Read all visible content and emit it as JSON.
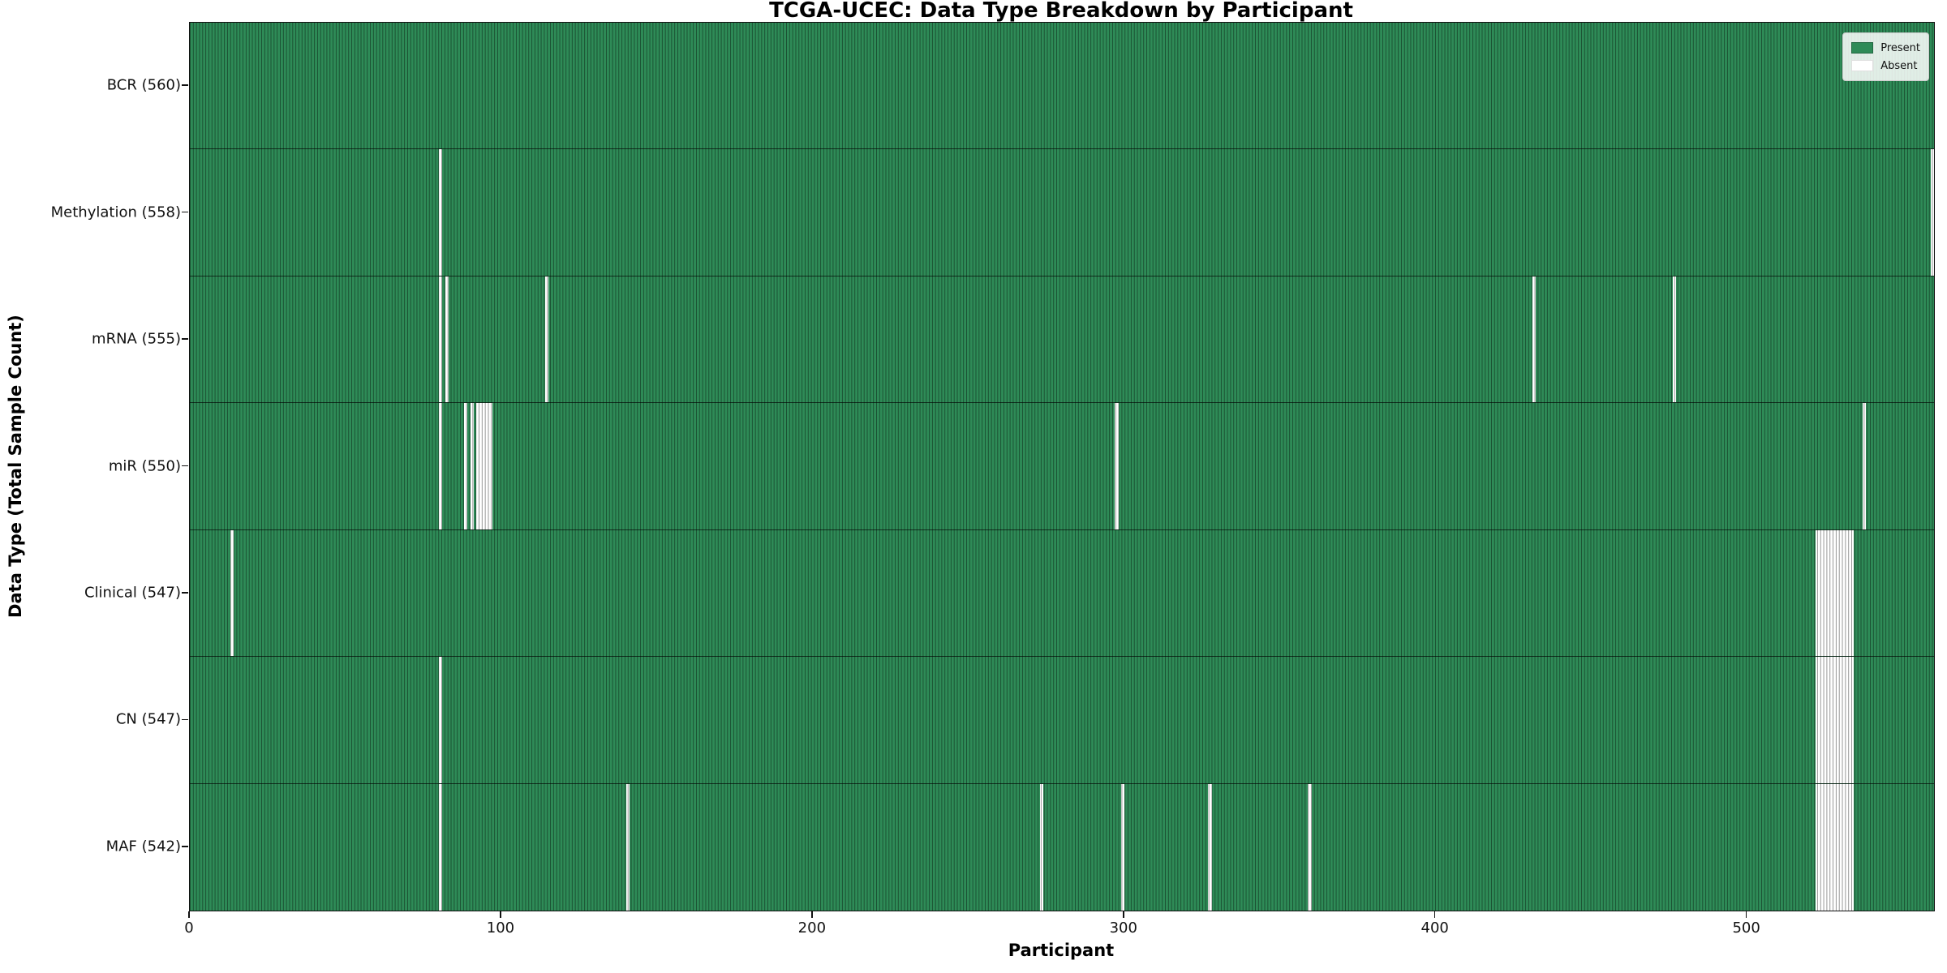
{
  "title": "TCGA-UCEC: Data Type Breakdown by Participant",
  "chart_data": {
    "type": "heatmap",
    "title": "TCGA-UCEC: Data Type Breakdown by Participant",
    "xlabel": "Participant",
    "ylabel": "Data Type (Total Sample Count)",
    "xlim": [
      0,
      560
    ],
    "n_participants": 560,
    "x_ticks": [
      0,
      100,
      200,
      300,
      400,
      500
    ],
    "grid": false,
    "legend_position": "upper right",
    "legend": {
      "entries": [
        {
          "label": "Present",
          "color": "#2e8b57"
        },
        {
          "label": "Absent",
          "color": "#ffffff"
        }
      ]
    },
    "colors": {
      "present": "#2e8b57",
      "absent": "#ffffff",
      "bar_edge": "rgba(0,0,0,0.42)",
      "background": "#ffffff"
    },
    "rows": [
      {
        "label": "BCR (560)",
        "data_type": "BCR",
        "present_count": 560,
        "absent_participants": []
      },
      {
        "label": "Methylation (558)",
        "data_type": "Methylation",
        "present_count": 558,
        "absent_participants": [
          80,
          559
        ]
      },
      {
        "label": "mRNA (555)",
        "data_type": "mRNA",
        "present_count": 555,
        "absent_participants": [
          80,
          82,
          114,
          431,
          476
        ]
      },
      {
        "label": "miR (550)",
        "data_type": "miR",
        "present_count": 550,
        "absent_participants": [
          80,
          88,
          90,
          92,
          93,
          94,
          95,
          96,
          297,
          537
        ]
      },
      {
        "label": "Clinical (547)",
        "data_type": "Clinical",
        "present_count": 547,
        "absent_participants": [
          13,
          522,
          523,
          524,
          525,
          526,
          527,
          528,
          529,
          530,
          531,
          532,
          533
        ]
      },
      {
        "label": "CN (547)",
        "data_type": "CN",
        "present_count": 547,
        "absent_participants": [
          80,
          522,
          523,
          524,
          525,
          526,
          527,
          528,
          529,
          530,
          531,
          532,
          533
        ]
      },
      {
        "label": "MAF (542)",
        "data_type": "MAF",
        "present_count": 542,
        "absent_participants": [
          80,
          140,
          273,
          299,
          327,
          359,
          522,
          523,
          524,
          525,
          526,
          527,
          528,
          529,
          530,
          531,
          532,
          533
        ]
      }
    ]
  }
}
